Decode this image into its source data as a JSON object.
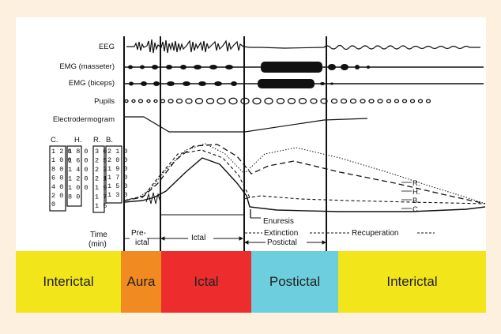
{
  "colors": {
    "page_bg": "#fdf0de",
    "panel_bg": "#ffffff",
    "ink": "#111111",
    "interictal": "#f2e51a",
    "aura": "#f28a22",
    "ictal": "#ec2c2d",
    "postictal": "#6dcfdd"
  },
  "signal_labels": [
    "EEG",
    "EMG (masseter)",
    "EMG (biceps)",
    "Pupils",
    "Electrodermogram"
  ],
  "scale_headers": [
    "C.",
    "H.",
    "R.",
    "B."
  ],
  "scales": {
    "C": [
      "1 2 0",
      "1 0 0",
      "8 0",
      "6 0",
      "4 0",
      "2 0",
      "0"
    ],
    "H": [
      "1 8 0",
      "1 6 0",
      "1 4 0",
      "1 2 0",
      "1 0 0",
      "8 0"
    ],
    "R": [
      "3 0",
      "2 5",
      "2 3",
      "2 1",
      "1 9",
      "1 7",
      "1 5"
    ],
    "B": [
      "2 1 0",
      "2 0 0",
      "1 9 0",
      "1 7 0",
      "1 5 0",
      "1 3 0"
    ]
  },
  "curve_labels": [
    "R.",
    "H.",
    "B.",
    "C."
  ],
  "annotations": {
    "enuresis": "Enuresis",
    "time_label": "Time",
    "time_unit": "(min)",
    "preictal_top": "Pre-",
    "preictal_bottom": "ictal",
    "ictal": "Ictal",
    "extinction": "Extinction",
    "postictal": "Postictal",
    "recuperation": "Recuperation"
  },
  "phases": [
    {
      "label": "Interictal",
      "color": "#f2e51a"
    },
    {
      "label": "Aura",
      "color": "#f28a22"
    },
    {
      "label": "Ictal",
      "color": "#ec2c2d"
    },
    {
      "label": "Postictal",
      "color": "#6dcfdd"
    },
    {
      "label": "Interictal",
      "color": "#f2e51a"
    }
  ]
}
